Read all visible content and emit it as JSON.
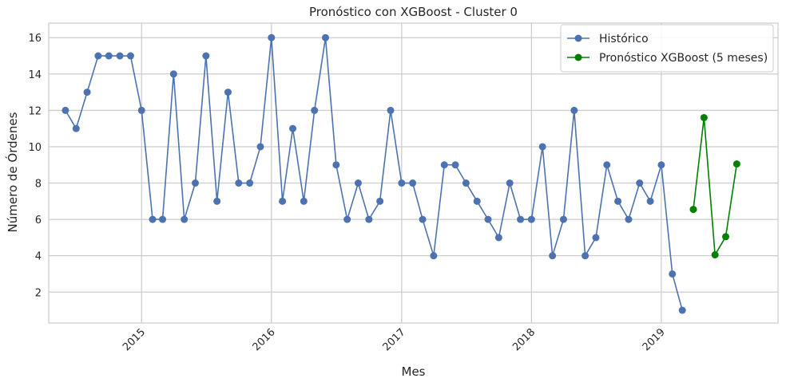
{
  "chart_data": {
    "type": "line",
    "title": "Pronóstico con XGBoost - Cluster 0",
    "xlabel": "Mes",
    "ylabel": "Número de Órdenes",
    "xlim": [
      "2014-04-15",
      "2019-11-25"
    ],
    "ylim": [
      0.3,
      16.8
    ],
    "y_ticks": [
      2,
      4,
      6,
      8,
      10,
      12,
      14,
      16
    ],
    "x_ticks": [
      {
        "date": "2015-01-01",
        "label": "2015"
      },
      {
        "date": "2016-01-01",
        "label": "2016"
      },
      {
        "date": "2017-01-01",
        "label": "2017"
      },
      {
        "date": "2018-01-01",
        "label": "2018"
      },
      {
        "date": "2019-01-01",
        "label": "2019"
      }
    ],
    "grid": true,
    "legend_position": "top-right",
    "series": [
      {
        "name": "Histórico",
        "color": "#4c72b0",
        "x": [
          "2014-06-01",
          "2014-07-01",
          "2014-08-01",
          "2014-09-01",
          "2014-10-01",
          "2014-11-01",
          "2014-12-01",
          "2015-01-01",
          "2015-02-01",
          "2015-03-01",
          "2015-04-01",
          "2015-05-01",
          "2015-06-01",
          "2015-07-01",
          "2015-08-01",
          "2015-09-01",
          "2015-10-01",
          "2015-11-01",
          "2015-12-01",
          "2016-01-01",
          "2016-02-01",
          "2016-03-01",
          "2016-04-01",
          "2016-05-01",
          "2016-06-01",
          "2016-07-01",
          "2016-08-01",
          "2016-09-01",
          "2016-10-01",
          "2016-11-01",
          "2016-12-01",
          "2017-01-01",
          "2017-02-01",
          "2017-03-01",
          "2017-04-01",
          "2017-05-01",
          "2017-06-01",
          "2017-07-01",
          "2017-08-01",
          "2017-09-01",
          "2017-10-01",
          "2017-11-01",
          "2017-12-01",
          "2018-01-01",
          "2018-02-01",
          "2018-03-01",
          "2018-04-01",
          "2018-05-01",
          "2018-06-01",
          "2018-07-01",
          "2018-08-01",
          "2018-09-01",
          "2018-10-01",
          "2018-11-01",
          "2018-12-01",
          "2019-01-01",
          "2019-02-01",
          "2019-03-01"
        ],
        "y": [
          12,
          11,
          13,
          15,
          15,
          15,
          15,
          12,
          6,
          6,
          14,
          6,
          8,
          15,
          7,
          13,
          8,
          8,
          10,
          16,
          7,
          11,
          7,
          12,
          16,
          9,
          6,
          8,
          6,
          7,
          12,
          8,
          8,
          6,
          4,
          9,
          9,
          8,
          7,
          6,
          5,
          8,
          6,
          6,
          10,
          4,
          6,
          12,
          4,
          5,
          9,
          7,
          6,
          8,
          7,
          9,
          3,
          1
        ]
      },
      {
        "name": "Pronóstico XGBoost (5 meses)",
        "color": "#008000",
        "x": [
          "2019-04-01",
          "2019-05-01",
          "2019-06-01",
          "2019-07-01",
          "2019-08-01"
        ],
        "y": [
          6.55,
          11.6,
          4.05,
          5.05,
          9.05
        ]
      }
    ]
  }
}
